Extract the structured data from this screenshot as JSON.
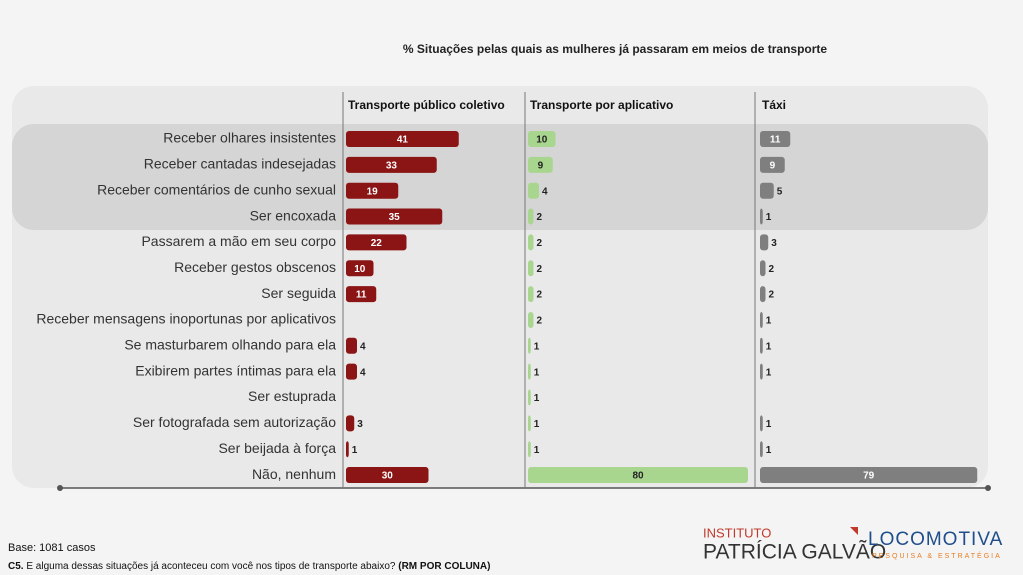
{
  "chart_data": {
    "type": "bar",
    "title": "% Situações pelas quais as mulheres já passaram em meios de transporte",
    "categories": [
      "Receber olhares insistentes",
      "Receber cantadas indesejadas",
      "Receber comentários de cunho sexual",
      "Ser encoxada",
      "Passarem a mão em seu corpo",
      "Receber gestos obscenos",
      "Ser seguida",
      "Receber mensagens inoportunas por aplicativos",
      "Se masturbarem olhando para ela",
      "Exibirem partes íntimas para ela",
      "Ser estuprada",
      "Ser fotografada sem autorização",
      "Ser beijada à força",
      "Não, nenhum"
    ],
    "series": [
      {
        "name": "Transporte público coletivo",
        "color": "#8b1414",
        "values": [
          41,
          33,
          19,
          35,
          22,
          10,
          11,
          null,
          4,
          4,
          null,
          3,
          1,
          30
        ]
      },
      {
        "name": "Transporte por aplicativo",
        "color": "#a9d68f",
        "values": [
          10,
          9,
          4,
          2,
          2,
          2,
          2,
          2,
          1,
          1,
          1,
          1,
          1,
          80
        ]
      },
      {
        "name": "Táxi",
        "color": "#7f7f7f",
        "values": [
          11,
          9,
          5,
          1,
          3,
          2,
          2,
          1,
          1,
          1,
          null,
          1,
          1,
          79
        ]
      }
    ]
  },
  "footer": {
    "base": "Base: 1081 casos",
    "question_code": "C5.",
    "question": " E alguma dessas situações já aconteceu com você nos tipos de transporte abaixo? ",
    "question_note": "(RM POR COLUNA)"
  },
  "logos": {
    "instituto": "INSTITUTO",
    "patricia": "PATRÍCIA GALVÃO",
    "locomotiva": "LOCOMOTIVA",
    "locomotiva_sub": "PESQUISA & ESTRATÉGIA"
  }
}
